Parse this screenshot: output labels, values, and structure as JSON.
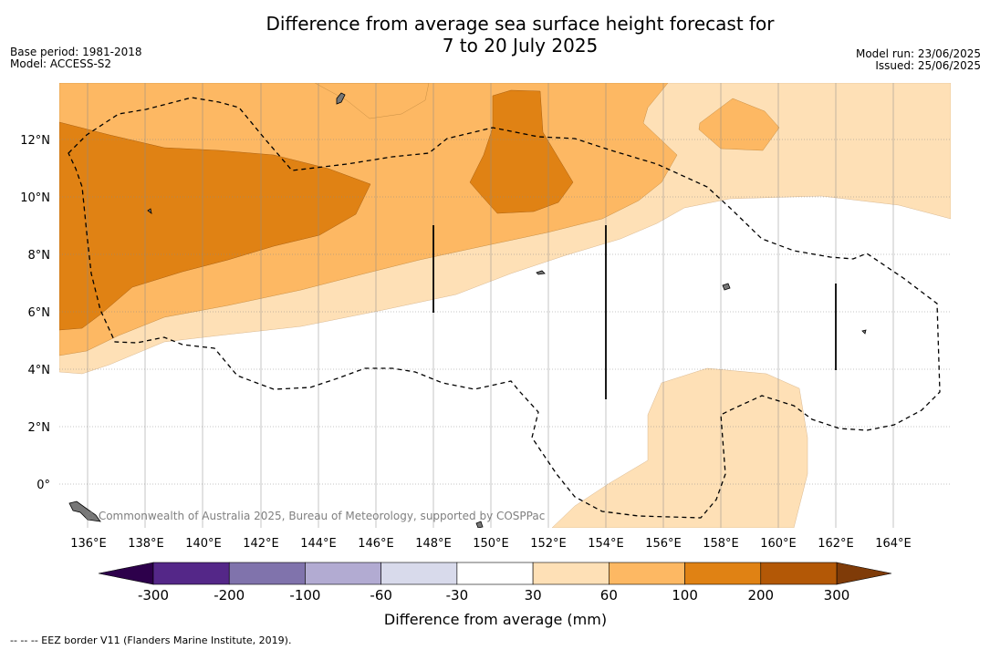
{
  "title_line1": "Difference from average sea surface height forecast for",
  "title_line2": "7 to 20 July 2025",
  "meta_left": {
    "base_period": "Base period: 1981-2018",
    "model": "Model: ACCESS-S2"
  },
  "meta_right": {
    "model_run": "Model run: 23/06/2025",
    "issued": "Issued: 25/06/2025"
  },
  "copyright": "© Commonwealth of Australia 2025, Bureau of Meteorology, supported by COSPPac",
  "x_ticks": [
    "136°E",
    "138°E",
    "140°E",
    "142°E",
    "144°E",
    "146°E",
    "148°E",
    "150°E",
    "152°E",
    "154°E",
    "156°E",
    "158°E",
    "160°E",
    "162°E",
    "164°E"
  ],
  "y_ticks": [
    "0°",
    "2°N",
    "4°N",
    "6°N",
    "8°N",
    "10°N",
    "12°N"
  ],
  "colorbar": {
    "label": "Difference from average (mm)",
    "tick_labels": [
      "-300",
      "-200",
      "-100",
      "-60",
      "-30",
      "30",
      "60",
      "100",
      "200",
      "300"
    ],
    "colors": [
      "#542788",
      "#8073ac",
      "#b2abd2",
      "#d8daeb",
      "#ffffff",
      "#fee0b6",
      "#fdb863",
      "#e08214",
      "#b35806"
    ],
    "under_color": "#2d004b",
    "over_color": "#7f3b08"
  },
  "footnote": "--  --  -- EEZ border V11 (Flanders Marine Institute, 2019)."
}
